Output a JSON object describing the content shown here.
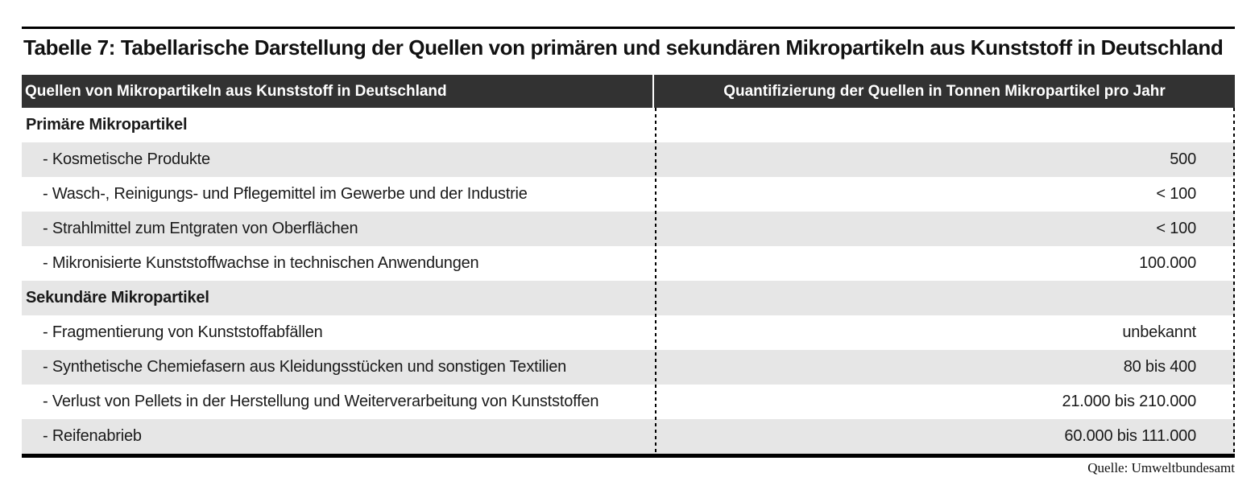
{
  "title": "Tabelle 7: Tabellarische Darstellung der Quellen von primären und sekundären Mikropartikeln aus Kunststoff in Deutschland",
  "table": {
    "columns": [
      {
        "label": "Quellen von Mikropartikeln aus Kunststoff in Deutschland"
      },
      {
        "label": "Quantifizierung der Quellen in Tonnen Mikropartikel pro Jahr"
      }
    ],
    "rows": [
      {
        "label": "Primäre Mikropartikel",
        "value": "",
        "kind": "section"
      },
      {
        "label": "- Kosmetische Produkte",
        "value": "500",
        "kind": "item"
      },
      {
        "label": "- Wasch-, Reinigungs- und Pflegemittel im Gewerbe und der Industrie",
        "value": "< 100",
        "kind": "item"
      },
      {
        "label": "- Strahlmittel zum Entgraten von Oberflächen",
        "value": "< 100",
        "kind": "item"
      },
      {
        "label": "- Mikronisierte Kunststoffwachse in technischen Anwendungen",
        "value": "100.000",
        "kind": "item"
      },
      {
        "label": "Sekundäre Mikropartikel",
        "value": "",
        "kind": "section"
      },
      {
        "label": "- Fragmentierung von Kunststoffabfällen",
        "value": "unbekannt",
        "kind": "item"
      },
      {
        "label": "- Synthetische Chemiefasern aus Kleidungsstücken und sonstigen Textilien",
        "value": "80 bis 400",
        "kind": "item"
      },
      {
        "label": "- Verlust von Pellets in der Herstellung und Weiterverarbeitung von Kunststoffen",
        "value": "21.000 bis 210.000",
        "kind": "item"
      },
      {
        "label": "- Reifenabrieb",
        "value": "60.000 bis 111.000",
        "kind": "item"
      }
    ]
  },
  "source": "Quelle: Umweltbundesamt",
  "colors": {
    "header_bg": "#323232",
    "header_text": "#ffffff",
    "row_shade": "#e6e6e6",
    "rule": "#000000"
  },
  "chart_data": {
    "type": "table",
    "title": "Tabelle 7: Tabellarische Darstellung der Quellen von primären und sekundären Mikropartikeln aus Kunststoff in Deutschland",
    "columns": [
      "Quellen von Mikropartikeln aus Kunststoff in Deutschland",
      "Quantifizierung der Quellen in Tonnen Mikropartikel pro Jahr"
    ],
    "rows": [
      [
        "Primäre Mikropartikel",
        ""
      ],
      [
        "- Kosmetische Produkte",
        "500"
      ],
      [
        "- Wasch-, Reinigungs- und Pflegemittel im Gewerbe und der Industrie",
        "< 100"
      ],
      [
        "- Strahlmittel zum Entgraten von Oberflächen",
        "< 100"
      ],
      [
        "- Mikronisierte Kunststoffwachse in technischen Anwendungen",
        "100.000"
      ],
      [
        "Sekundäre Mikropartikel",
        ""
      ],
      [
        "- Fragmentierung von Kunststoffabfällen",
        "unbekannt"
      ],
      [
        "- Synthetische Chemiefasern aus Kleidungsstücken und sonstigen Textilien",
        "80 bis 400"
      ],
      [
        "- Verlust von Pellets in der Herstellung und Weiterverarbeitung von Kunststoffen",
        "21.000 bis 210.000"
      ],
      [
        "- Reifenabrieb",
        "60.000 bis 111.000"
      ]
    ],
    "source": "Quelle: Umweltbundesamt",
    "layout": {
      "zebra_striping": true,
      "value_alignment": "right",
      "column_divider": "dashed"
    }
  }
}
